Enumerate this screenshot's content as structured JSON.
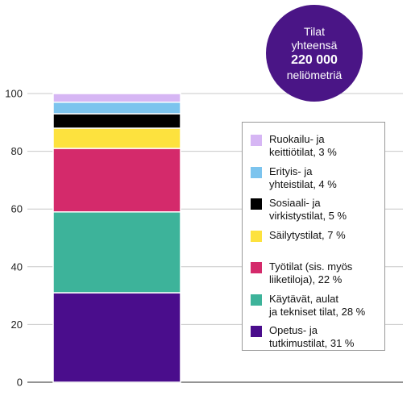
{
  "chart_data": {
    "type": "bar",
    "stacked": true,
    "categories": [
      ""
    ],
    "ylim": [
      0,
      100
    ],
    "yticks": [
      0,
      20,
      40,
      60,
      80,
      100
    ],
    "grid": true,
    "legend_position": "right",
    "series": [
      {
        "name_lines": [
          "Opetus- ja",
          "tutkimustilat, 31 %"
        ],
        "values": [
          31
        ],
        "color": "#4a0d8c"
      },
      {
        "name_lines": [
          "Käytävät, aulat",
          "ja tekniset tilat, 28 %"
        ],
        "values": [
          28
        ],
        "color": "#3db39a"
      },
      {
        "name_lines": [
          "Työtilat (sis. myös",
          "liiketiloja), 22 %"
        ],
        "values": [
          22
        ],
        "color": "#d42a6b"
      },
      {
        "name_lines": [
          "Säilytystilat, 7 %"
        ],
        "values": [
          7
        ],
        "color": "#fde23e"
      },
      {
        "name_lines": [
          "Sosiaali- ja",
          "virkistystilat, 5 %"
        ],
        "values": [
          5
        ],
        "color": "#000000"
      },
      {
        "name_lines": [
          "Erityis- ja",
          "yhteistilat, 4 %"
        ],
        "values": [
          4
        ],
        "color": "#7cc4ee"
      },
      {
        "name_lines": [
          "Ruokailu- ja",
          "keittiötilat, 3 %"
        ],
        "values": [
          3
        ],
        "color": "#d6b6f4"
      }
    ],
    "badge": {
      "line1": "Tilat",
      "line2": "yhteensä",
      "value": "220 000",
      "unit": "neliömetriä",
      "color": "#4a1586"
    }
  }
}
